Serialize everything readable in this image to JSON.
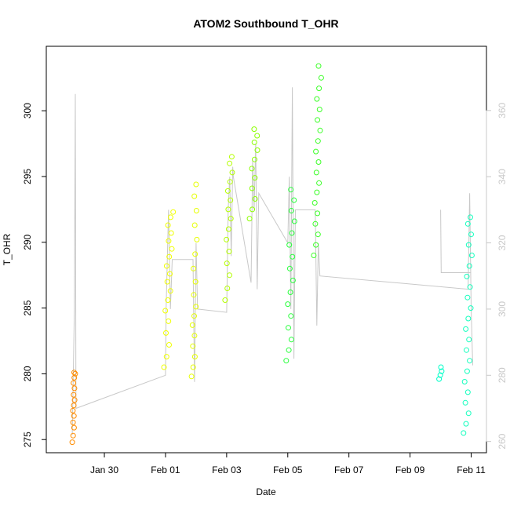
{
  "chart_data": {
    "type": "scatter",
    "title": "ATOM2 Southbound T_OHR",
    "xlabel": "Date",
    "ylabel": "T_OHR",
    "x_unit": "days since Jan 29 00:00",
    "xlim": [
      -0.9,
      13.5
    ],
    "ylim": [
      274.0,
      304.9
    ],
    "y2lim": [
      256.6,
      379.4
    ],
    "x_ticks": [
      {
        "x": 1,
        "label": "Jan 30"
      },
      {
        "x": 3,
        "label": "Feb 01"
      },
      {
        "x": 5,
        "label": "Feb 03"
      },
      {
        "x": 7,
        "label": "Feb 05"
      },
      {
        "x": 9,
        "label": "Feb 07"
      },
      {
        "x": 11,
        "label": "Feb 09"
      },
      {
        "x": 13,
        "label": "Feb 11"
      }
    ],
    "y_ticks": [
      275,
      280,
      285,
      290,
      295,
      300
    ],
    "y2_ticks": [
      260,
      280,
      300,
      320,
      340,
      360
    ],
    "grid": false,
    "right_axis_color": "#c8c8c8",
    "line_color": "#c8c8c8",
    "series": [
      {
        "color": "#ff8c00",
        "x_range": [
          -0.05,
          0.05
        ],
        "y": [
          274.8,
          275.3,
          275.9,
          276.3,
          276.8,
          277.2,
          277.6,
          278.0,
          278.4,
          278.9,
          279.3,
          279.7,
          280.0,
          280.1
        ]
      },
      {
        "color": "#f0ff00",
        "x_range": [
          2.95,
          3.25
        ],
        "y": [
          280.5,
          281.3,
          282.2,
          283.1,
          284.0,
          284.8,
          285.6,
          286.3,
          287.0,
          287.6,
          288.2,
          288.9,
          289.5,
          290.1,
          290.7,
          291.3,
          291.9,
          292.3
        ]
      },
      {
        "color": "#e6ff00",
        "x_range": [
          3.85,
          4.05
        ],
        "y": [
          279.8,
          280.5,
          281.3,
          282.1,
          282.9,
          283.7,
          284.4,
          285.1,
          286.0,
          287.0,
          288.0,
          289.1,
          290.2,
          291.3,
          292.4,
          293.5,
          294.4
        ]
      },
      {
        "color": "#b4ff00",
        "x_range": [
          4.95,
          5.2
        ],
        "y": [
          285.6,
          286.5,
          287.5,
          288.4,
          289.3,
          290.2,
          291.0,
          291.8,
          292.5,
          293.2,
          293.9,
          294.6,
          295.3,
          296.0,
          296.5
        ]
      },
      {
        "color": "#8cff00",
        "x_range": [
          5.75,
          6.05
        ],
        "y": [
          291.8,
          292.5,
          293.3,
          294.1,
          294.9,
          295.6,
          296.3,
          297.0,
          297.6,
          298.1,
          298.6
        ]
      },
      {
        "color": "#28ff3c",
        "x_range": [
          6.95,
          7.25
        ],
        "y": [
          281.0,
          281.8,
          282.6,
          283.5,
          284.4,
          285.3,
          286.2,
          287.1,
          288.0,
          288.9,
          289.8,
          290.7,
          291.6,
          292.4,
          293.2,
          294.0
        ]
      },
      {
        "color": "#3cff28",
        "x_range": [
          7.85,
          8.1
        ],
        "y": [
          289.0,
          289.8,
          290.6,
          291.4,
          292.2,
          293.0,
          293.8,
          294.5,
          295.3,
          296.1,
          296.9,
          297.7,
          298.5,
          299.3,
          300.1,
          300.9,
          301.7,
          302.5,
          303.4
        ]
      },
      {
        "color": "#00ffc8",
        "x_range": [
          11.95,
          12.05
        ],
        "y": [
          279.6,
          279.9,
          280.2,
          280.5
        ]
      },
      {
        "color": "#14ffbe",
        "x_range": [
          12.75,
          13.05
        ],
        "y": [
          275.5,
          276.2,
          277.0,
          277.8,
          278.6,
          279.4,
          280.2,
          281.0,
          281.8,
          282.6,
          283.4,
          284.2,
          285.0,
          285.8,
          286.6,
          287.4,
          288.2,
          289.0,
          289.8,
          290.6,
          291.4,
          291.9
        ]
      }
    ],
    "trace": [
      {
        "x": -0.05,
        "y2": 262
      },
      {
        "x": 0.02,
        "y2": 300
      },
      {
        "x": 0.05,
        "y2": 365
      },
      {
        "x": 0.07,
        "y2": 270
      },
      {
        "x": 3.0,
        "y2": 280
      },
      {
        "x": 3.02,
        "y2": 300
      },
      {
        "x": 3.1,
        "y2": 330
      },
      {
        "x": 3.16,
        "y2": 300
      },
      {
        "x": 3.22,
        "y2": 315
      },
      {
        "x": 3.9,
        "y2": 315
      },
      {
        "x": 3.95,
        "y2": 278
      },
      {
        "x": 4.0,
        "y2": 320
      },
      {
        "x": 4.05,
        "y2": 300
      },
      {
        "x": 5.0,
        "y2": 299
      },
      {
        "x": 5.05,
        "y2": 330
      },
      {
        "x": 5.1,
        "y2": 340
      },
      {
        "x": 5.15,
        "y2": 316
      },
      {
        "x": 5.2,
        "y2": 343
      },
      {
        "x": 5.22,
        "y2": 340
      },
      {
        "x": 5.8,
        "y2": 308
      },
      {
        "x": 5.85,
        "y2": 345
      },
      {
        "x": 5.9,
        "y2": 330
      },
      {
        "x": 5.95,
        "y2": 350
      },
      {
        "x": 6.0,
        "y2": 306
      },
      {
        "x": 6.05,
        "y2": 335
      },
      {
        "x": 7.0,
        "y2": 320
      },
      {
        "x": 7.05,
        "y2": 340
      },
      {
        "x": 7.1,
        "y2": 300
      },
      {
        "x": 7.15,
        "y2": 367
      },
      {
        "x": 7.2,
        "y2": 285
      },
      {
        "x": 7.25,
        "y2": 330
      },
      {
        "x": 7.9,
        "y2": 330
      },
      {
        "x": 7.95,
        "y2": 295
      },
      {
        "x": 8.0,
        "y2": 320
      },
      {
        "x": 8.05,
        "y2": 310
      },
      {
        "x": 12.9,
        "y2": 306
      },
      {
        "x": 12.95,
        "y2": 335
      },
      {
        "x": 13.0,
        "y2": 300
      },
      {
        "x": 13.05,
        "y2": 283
      }
    ],
    "trace_extra": [
      {
        "x": 12.0,
        "y2": 330
      },
      {
        "x": 12.02,
        "y2": 311
      },
      {
        "x": 13.0,
        "y2": 311
      }
    ]
  }
}
